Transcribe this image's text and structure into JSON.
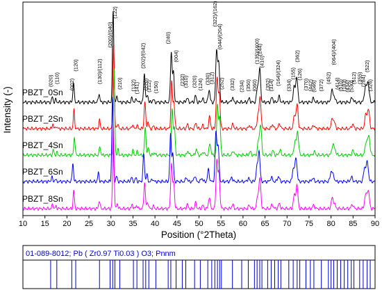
{
  "chart_data": {
    "type": "line",
    "title": "",
    "xlabel": "Position (°2Theta)",
    "ylabel": "Intensity (-)",
    "xlim": [
      10,
      90
    ],
    "x_ticks": [
      10,
      15,
      20,
      25,
      30,
      35,
      40,
      45,
      50,
      55,
      60,
      65,
      70,
      75,
      80,
      85,
      90
    ],
    "y_ticks_shown": false,
    "grid": false,
    "peaks": [
      {
        "pos": 16.7,
        "h": 0.06
      },
      {
        "pos": 17.5,
        "h": 0.03
      },
      {
        "pos": 21.5,
        "h": 0.22
      },
      {
        "pos": 27.3,
        "h": 0.1
      },
      {
        "pos": 30.5,
        "h": 1.0
      },
      {
        "pos": 31.4,
        "h": 0.06
      },
      {
        "pos": 34.8,
        "h": 0.05
      },
      {
        "pos": 35.8,
        "h": 0.04
      },
      {
        "pos": 37.6,
        "h": 0.32
      },
      {
        "pos": 38.3,
        "h": 0.08
      },
      {
        "pos": 39.6,
        "h": 0.03
      },
      {
        "pos": 43.7,
        "h": 0.55
      },
      {
        "pos": 44.2,
        "h": 0.32
      },
      {
        "pos": 47.3,
        "h": 0.05
      },
      {
        "pos": 49.2,
        "h": 0.07
      },
      {
        "pos": 50.8,
        "h": 0.04
      },
      {
        "pos": 52.3,
        "h": 0.14
      },
      {
        "pos": 54.0,
        "h": 0.58
      },
      {
        "pos": 54.5,
        "h": 0.42
      },
      {
        "pos": 57.6,
        "h": 0.05
      },
      {
        "pos": 61.4,
        "h": 0.04
      },
      {
        "pos": 63.3,
        "h": 0.16
      },
      {
        "pos": 63.8,
        "h": 0.36
      },
      {
        "pos": 66.6,
        "h": 0.05
      },
      {
        "pos": 68.2,
        "h": 0.06
      },
      {
        "pos": 71.6,
        "h": 0.16
      },
      {
        "pos": 72.2,
        "h": 0.28
      },
      {
        "pos": 76.0,
        "h": 0.04
      },
      {
        "pos": 80.2,
        "h": 0.12
      },
      {
        "pos": 80.7,
        "h": 0.06
      },
      {
        "pos": 84.8,
        "h": 0.05
      },
      {
        "pos": 87.8,
        "h": 0.16
      },
      {
        "pos": 88.4,
        "h": 0.22
      }
    ],
    "series": [
      {
        "name": "PBZT_0Sn",
        "color": "#000000"
      },
      {
        "name": "PBZT_2Sn",
        "color": "#ff0000"
      },
      {
        "name": "PBZT_4Sn",
        "color": "#00cc00"
      },
      {
        "name": "PBZT_6Sn",
        "color": "#0000ff"
      },
      {
        "name": "PBZT_8Sn",
        "color": "#ff00ff"
      }
    ],
    "annotations": [
      {
        "text": "(020)",
        "x": 16.3,
        "h": 0.13
      },
      {
        "text": "(110)",
        "x": 17.7,
        "h": 0.16
      },
      {
        "text": "(002)",
        "x": 21.1,
        "h": 0.09
      },
      {
        "text": "(120)",
        "x": 22.0,
        "h": 0.3
      },
      {
        "text": "(130)/(112)",
        "x": 27.4,
        "h": 0.16
      },
      {
        "text": "(200)/(040)",
        "x": 29.8,
        "h": 0.56
      },
      {
        "text": "(122)",
        "x": 30.9,
        "h": 0.88
      },
      {
        "text": "(210)",
        "x": 32.0,
        "h": 0.1
      },
      {
        "text": "(132)",
        "x": 35.1,
        "h": 0.08
      },
      {
        "text": "(141)",
        "x": 35.9,
        "h": 0.05
      },
      {
        "text": "(202)/(042)",
        "x": 37.3,
        "h": 0.33
      },
      {
        "text": "(220)",
        "x": 37.9,
        "h": 0.09
      },
      {
        "text": "(212)",
        "x": 38.6,
        "h": 0.07
      },
      {
        "text": "(150)",
        "x": 40.2,
        "h": 0.06
      },
      {
        "text": "(240)",
        "x": 43.0,
        "h": 0.6
      },
      {
        "text": "(004)",
        "x": 44.8,
        "h": 0.4
      },
      {
        "text": "(232)",
        "x": 46.2,
        "h": 0.14
      },
      {
        "text": "(310)",
        "x": 47.0,
        "h": 0.12
      },
      {
        "text": "(320)",
        "x": 49.0,
        "h": 0.12
      },
      {
        "text": "(124)",
        "x": 50.3,
        "h": 0.09
      },
      {
        "text": "(330)",
        "x": 52.0,
        "h": 0.15
      },
      {
        "text": "(312)",
        "x": 52.9,
        "h": 0.16
      },
      {
        "text": "(322)/(162)",
        "x": 53.6,
        "h": 0.79
      },
      {
        "text": "(044)/(204)",
        "x": 54.7,
        "h": 0.54
      },
      {
        "text": "(252)",
        "x": 55.1,
        "h": 0.1
      },
      {
        "text": "(332)",
        "x": 57.6,
        "h": 0.09
      },
      {
        "text": "(234)",
        "x": 59.7,
        "h": 0.07
      },
      {
        "text": "(350)",
        "x": 61.2,
        "h": 0.08
      },
      {
        "text": "(060)",
        "x": 62.6,
        "h": 0.08
      },
      {
        "text": "(135)/(400)",
        "x": 63.2,
        "h": 0.38
      },
      {
        "text": "(244)",
        "x": 63.8,
        "h": 0.47
      },
      {
        "text": "(410)",
        "x": 64.3,
        "h": 0.34
      },
      {
        "text": "(352)",
        "x": 65.6,
        "h": 0.09
      },
      {
        "text": "(314)",
        "x": 66.4,
        "h": 0.08
      },
      {
        "text": "(164)/(324)",
        "x": 68.0,
        "h": 0.14
      },
      {
        "text": "(334)",
        "x": 70.4,
        "h": 0.08
      },
      {
        "text": "(155)",
        "x": 71.4,
        "h": 0.21
      },
      {
        "text": "(362)",
        "x": 72.3,
        "h": 0.4
      },
      {
        "text": "(126)",
        "x": 72.9,
        "h": 0.2
      },
      {
        "text": "(370)",
        "x": 74.3,
        "h": 0.09
      },
      {
        "text": "(442)",
        "x": 75.3,
        "h": 0.08
      },
      {
        "text": "(046)",
        "x": 76.1,
        "h": 0.07
      },
      {
        "text": "(372)",
        "x": 77.8,
        "h": 0.08
      },
      {
        "text": "(452)",
        "x": 79.4,
        "h": 0.16
      },
      {
        "text": "(064)/(404)",
        "x": 80.6,
        "h": 0.37
      },
      {
        "text": "(414)",
        "x": 81.4,
        "h": 0.1
      },
      {
        "text": "(510)",
        "x": 82.2,
        "h": 0.08
      },
      {
        "text": "(183)",
        "x": 83.0,
        "h": 0.08
      },
      {
        "text": "(434)",
        "x": 83.8,
        "h": 0.07
      },
      {
        "text": "(530)",
        "x": 84.6,
        "h": 0.07
      },
      {
        "text": "(512)",
        "x": 85.2,
        "h": 0.16
      },
      {
        "text": "(355)",
        "x": 86.5,
        "h": 0.16
      },
      {
        "text": "(284)",
        "x": 87.3,
        "h": 0.13
      },
      {
        "text": "(522)",
        "x": 88.2,
        "h": 0.29
      },
      {
        "text": "(326)",
        "x": 88.9,
        "h": 0.08
      }
    ],
    "reference_pattern": {
      "label": "01-089-8012; Pb ( Zr0.97 Ti0.03 ) O3; Pnnm",
      "lines": [
        16.3,
        17.7,
        21.1,
        22.0,
        27.4,
        29.8,
        30.4,
        30.9,
        32.0,
        35.1,
        35.9,
        37.3,
        37.9,
        38.6,
        40.2,
        43.0,
        43.6,
        44.8,
        46.2,
        47.0,
        49.0,
        50.3,
        52.0,
        52.9,
        53.6,
        54.2,
        54.7,
        55.1,
        57.6,
        59.7,
        61.2,
        62.6,
        63.2,
        63.8,
        64.3,
        65.6,
        66.4,
        67.2,
        68.0,
        68.6,
        70.4,
        71.4,
        72.3,
        72.9,
        74.3,
        75.3,
        76.1,
        77.8,
        79.4,
        80.0,
        80.6,
        81.4,
        82.2,
        83.0,
        83.8,
        84.6,
        85.2,
        86.5,
        87.3,
        88.2,
        88.9
      ]
    }
  }
}
